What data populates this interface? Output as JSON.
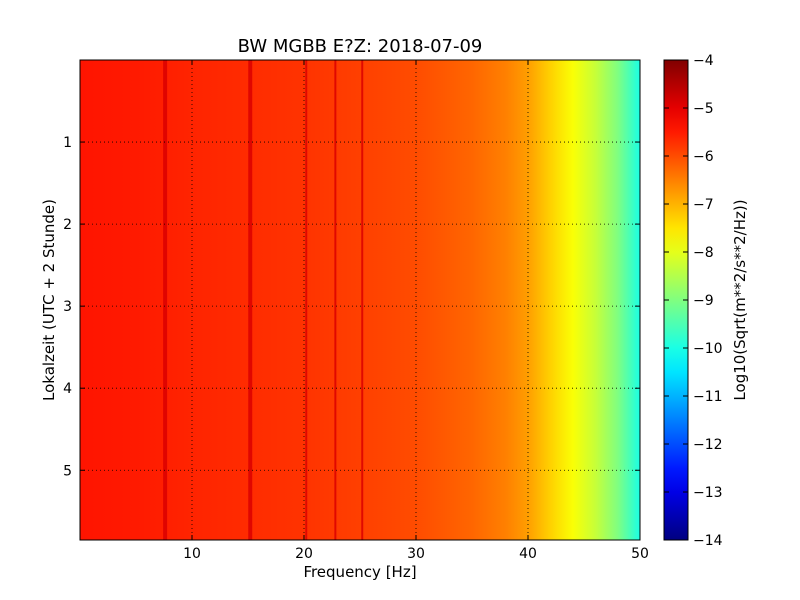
{
  "chart_data": {
    "type": "heatmap",
    "title": "BW MGBB E?Z: 2018-07-09",
    "xlabel": "Frequency [Hz]",
    "ylabel": "Lokalzeit (UTC + 2 Stunde)",
    "colorbar_label": "Log10(Sqrt(m**2/s**2/Hz))",
    "colormap": "jet",
    "xlim": [
      0,
      50
    ],
    "ylim": [
      5.85,
      0
    ],
    "y_inverted": true,
    "grid": true,
    "x_ticks": [
      {
        "value": 10,
        "label": "10"
      },
      {
        "value": 20,
        "label": "20"
      },
      {
        "value": 30,
        "label": "30"
      },
      {
        "value": 40,
        "label": "40"
      },
      {
        "value": 50,
        "label": "50"
      }
    ],
    "y_ticks": [
      {
        "value": 1,
        "label": "1"
      },
      {
        "value": 2,
        "label": "2"
      },
      {
        "value": 3,
        "label": "3"
      },
      {
        "value": 4,
        "label": "4"
      },
      {
        "value": 5,
        "label": "5"
      }
    ],
    "colorbar_range": [
      -14,
      -4
    ],
    "colorbar_ticks": [
      {
        "value": -4,
        "label": "−4"
      },
      {
        "value": -5,
        "label": "−5"
      },
      {
        "value": -6,
        "label": "−6"
      },
      {
        "value": -7,
        "label": "−7"
      },
      {
        "value": -8,
        "label": "−8"
      },
      {
        "value": -9,
        "label": "−9"
      },
      {
        "value": -10,
        "label": "−10"
      },
      {
        "value": -11,
        "label": "−11"
      },
      {
        "value": -12,
        "label": "−12"
      },
      {
        "value": -13,
        "label": "−13"
      },
      {
        "value": -14,
        "label": "−14"
      }
    ],
    "spectrum_profile": [
      {
        "freq": 0,
        "value": -5.45
      },
      {
        "freq": 5,
        "value": -5.5
      },
      {
        "freq": 10,
        "value": -5.6
      },
      {
        "freq": 20,
        "value": -5.75
      },
      {
        "freq": 30,
        "value": -6.0
      },
      {
        "freq": 35,
        "value": -6.25
      },
      {
        "freq": 38,
        "value": -6.5
      },
      {
        "freq": 40,
        "value": -6.8
      },
      {
        "freq": 42,
        "value": -7.3
      },
      {
        "freq": 44,
        "value": -7.8
      },
      {
        "freq": 46,
        "value": -8.3
      },
      {
        "freq": 48,
        "value": -9.0
      },
      {
        "freq": 50,
        "value": -10.0
      }
    ],
    "persistent_lines_hz": [
      7.6,
      15.2,
      20.2,
      22.8,
      25.2
    ],
    "line_strength": -4.9
  }
}
